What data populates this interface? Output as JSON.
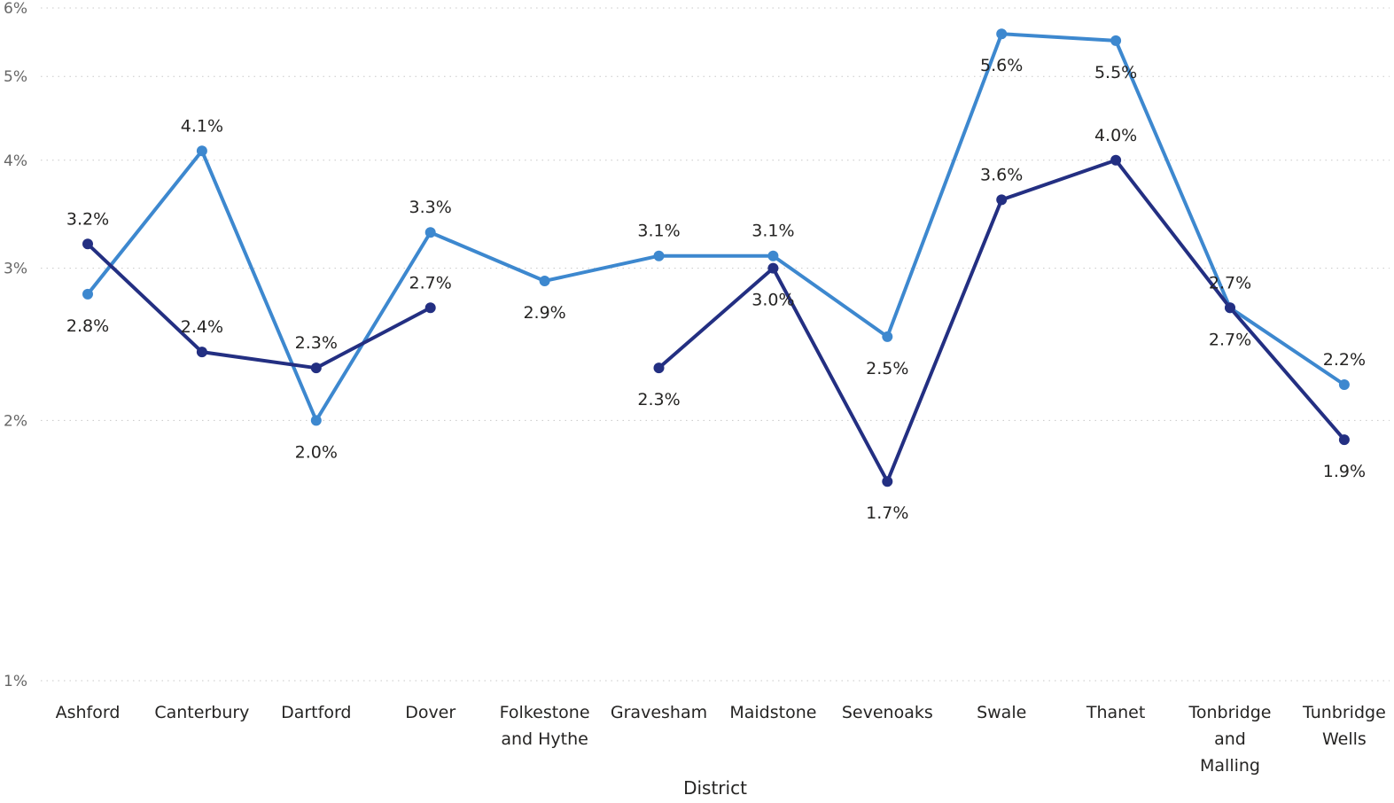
{
  "chart_data": {
    "type": "line",
    "xlabel": "District",
    "ylabel": "",
    "yscale": "log",
    "ylim": [
      1,
      6
    ],
    "yticks": [
      1,
      2,
      3,
      4,
      5,
      6
    ],
    "ytick_labels": [
      "1%",
      "2%",
      "3%",
      "4%",
      "5%",
      "6%"
    ],
    "grid": "horizontal dotted",
    "legend": "none",
    "categories": [
      [
        "Ashford"
      ],
      [
        "Canterbury"
      ],
      [
        "Dartford"
      ],
      [
        "Dover"
      ],
      [
        "Folkestone",
        "and Hythe"
      ],
      [
        "Gravesham"
      ],
      [
        "Maidstone"
      ],
      [
        "Sevenoaks"
      ],
      [
        "Swale"
      ],
      [
        "Thanet"
      ],
      [
        "Tonbridge",
        "and",
        "Malling"
      ],
      [
        "Tunbridge",
        "Wells"
      ]
    ],
    "series": [
      {
        "color": "#3d88cf",
        "values": [
          2.8,
          4.1,
          2.0,
          3.3,
          2.9,
          3.1,
          3.1,
          2.5,
          5.6,
          5.5,
          2.7,
          2.2
        ],
        "labels": [
          "2.8%",
          "4.1%",
          "2.0%",
          "3.3%",
          "2.9%",
          "3.1%",
          "3.1%",
          "2.5%",
          "5.6%",
          "5.5%",
          "2.7%",
          "2.2%"
        ]
      },
      {
        "color": "#232f82",
        "values": [
          3.2,
          2.4,
          2.3,
          2.7,
          null,
          2.3,
          3.0,
          1.7,
          3.6,
          4.0,
          2.7,
          1.9
        ],
        "labels": [
          "3.2%",
          "2.4%",
          "2.3%",
          "2.7%",
          "",
          "2.3%",
          "3.0%",
          "1.7%",
          "3.6%",
          "4.0%",
          "2.7%",
          "1.9%"
        ]
      }
    ]
  }
}
